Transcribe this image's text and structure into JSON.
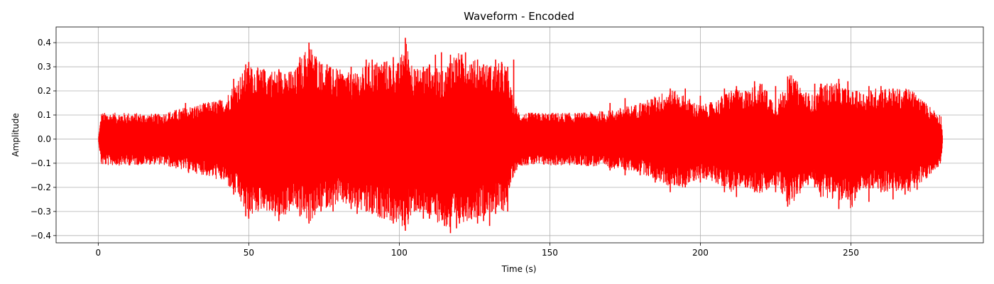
{
  "chart_data": {
    "type": "line",
    "title": "Waveform - Encoded",
    "xlabel": "Time (s)",
    "ylabel": "Amplitude",
    "xlim": [
      -14,
      294
    ],
    "ylim": [
      -0.43,
      0.465
    ],
    "xticks": [
      0,
      50,
      100,
      150,
      200,
      250
    ],
    "xtick_labels": [
      "0",
      "50",
      "100",
      "150",
      "200",
      "250"
    ],
    "yticks": [
      -0.4,
      -0.3,
      -0.2,
      -0.1,
      0.0,
      0.1,
      0.2,
      0.3,
      0.4
    ],
    "ytick_labels": [
      "−0.4",
      "−0.3",
      "−0.2",
      "−0.1",
      "0.0",
      "0.1",
      "0.2",
      "0.3",
      "0.4"
    ],
    "grid": true,
    "line_color": "#ff0000",
    "duration_s": 280.5,
    "series": [
      {
        "envelope_upper": {
          "x": [
            0,
            1,
            10,
            20,
            28,
            35,
            42,
            46,
            50,
            55,
            60,
            65,
            70,
            75,
            80,
            85,
            90,
            95,
            100,
            102,
            105,
            110,
            115,
            117,
            120,
            125,
            130,
            135,
            138,
            140,
            150,
            160,
            170,
            180,
            190,
            195,
            200,
            205,
            210,
            215,
            220,
            225,
            230,
            235,
            238,
            240,
            245,
            250,
            255,
            260,
            265,
            270,
            275,
            280,
            280.5
          ],
          "y": [
            0.0,
            0.11,
            0.11,
            0.105,
            0.13,
            0.15,
            0.17,
            0.25,
            0.31,
            0.29,
            0.29,
            0.28,
            0.4,
            0.31,
            0.29,
            0.27,
            0.32,
            0.33,
            0.32,
            0.42,
            0.29,
            0.31,
            0.28,
            0.35,
            0.36,
            0.33,
            0.31,
            0.32,
            0.16,
            0.11,
            0.11,
            0.11,
            0.12,
            0.15,
            0.21,
            0.18,
            0.14,
            0.16,
            0.21,
            0.2,
            0.24,
            0.15,
            0.27,
            0.2,
            0.18,
            0.23,
            0.24,
            0.2,
            0.2,
            0.22,
            0.21,
            0.21,
            0.15,
            0.1,
            0.0
          ]
        },
        "envelope_lower": {
          "x": [
            0,
            1,
            10,
            20,
            28,
            35,
            42,
            46,
            50,
            55,
            60,
            65,
            70,
            75,
            80,
            85,
            90,
            95,
            100,
            102,
            105,
            110,
            115,
            117,
            120,
            125,
            130,
            135,
            138,
            140,
            150,
            160,
            170,
            180,
            190,
            195,
            200,
            205,
            210,
            215,
            220,
            225,
            230,
            235,
            238,
            240,
            245,
            250,
            255,
            260,
            265,
            270,
            275,
            280,
            280.5
          ],
          "y": [
            0.0,
            -0.11,
            -0.11,
            -0.105,
            -0.13,
            -0.15,
            -0.18,
            -0.24,
            -0.33,
            -0.29,
            -0.34,
            -0.29,
            -0.35,
            -0.29,
            -0.27,
            -0.29,
            -0.32,
            -0.33,
            -0.36,
            -0.38,
            -0.3,
            -0.33,
            -0.36,
            -0.39,
            -0.35,
            -0.33,
            -0.31,
            -0.3,
            -0.15,
            -0.11,
            -0.11,
            -0.11,
            -0.12,
            -0.14,
            -0.2,
            -0.2,
            -0.16,
            -0.18,
            -0.22,
            -0.2,
            -0.23,
            -0.2,
            -0.28,
            -0.2,
            -0.18,
            -0.24,
            -0.25,
            -0.29,
            -0.21,
            -0.22,
            -0.22,
            -0.22,
            -0.17,
            -0.1,
            0.0
          ]
        },
        "peaks_upper": {
          "x": [
            29,
            45,
            49,
            50,
            51,
            55,
            57,
            60,
            62,
            64,
            67,
            70,
            72,
            74,
            76,
            78,
            81,
            84,
            86,
            89,
            91,
            93,
            95,
            98,
            102,
            103,
            105,
            108,
            110,
            112,
            114,
            117,
            119,
            120,
            122,
            124,
            126,
            128,
            130,
            132,
            134,
            136,
            138,
            170,
            175,
            180,
            185,
            190,
            195,
            200,
            208,
            212,
            215,
            218,
            222,
            225,
            229,
            232,
            238,
            240,
            243,
            246,
            249,
            252,
            256,
            260,
            264,
            268,
            272
          ],
          "y": [
            0.15,
            0.25,
            0.31,
            0.32,
            0.29,
            0.29,
            0.26,
            0.29,
            0.27,
            0.28,
            0.34,
            0.4,
            0.33,
            0.31,
            0.31,
            0.29,
            0.27,
            0.3,
            0.27,
            0.33,
            0.33,
            0.3,
            0.32,
            0.34,
            0.42,
            0.33,
            0.29,
            0.3,
            0.31,
            0.35,
            0.36,
            0.35,
            0.33,
            0.33,
            0.36,
            0.31,
            0.33,
            0.31,
            0.3,
            0.33,
            0.32,
            0.3,
            0.33,
            0.15,
            0.17,
            0.15,
            0.17,
            0.21,
            0.21,
            0.18,
            0.21,
            0.22,
            0.2,
            0.24,
            0.2,
            0.22,
            0.26,
            0.2,
            0.23,
            0.23,
            0.22,
            0.25,
            0.24,
            0.2,
            0.22,
            0.22,
            0.21,
            0.2,
            0.16
          ]
        },
        "peaks_lower": {
          "x": [
            30,
            45,
            49,
            50,
            51,
            55,
            57,
            60,
            62,
            64,
            67,
            70,
            72,
            74,
            76,
            78,
            81,
            84,
            86,
            89,
            91,
            93,
            95,
            98,
            102,
            103,
            105,
            108,
            110,
            112,
            115,
            117,
            119,
            120,
            122,
            124,
            126,
            128,
            130,
            132,
            134,
            136,
            170,
            175,
            180,
            185,
            190,
            195,
            200,
            208,
            212,
            215,
            218,
            222,
            225,
            229,
            232,
            238,
            240,
            243,
            246,
            249,
            252,
            256,
            260,
            264,
            268,
            272
          ],
          "y": [
            -0.14,
            -0.23,
            -0.32,
            -0.33,
            -0.29,
            -0.28,
            -0.29,
            -0.34,
            -0.29,
            -0.27,
            -0.32,
            -0.35,
            -0.3,
            -0.3,
            -0.28,
            -0.3,
            -0.25,
            -0.29,
            -0.31,
            -0.3,
            -0.31,
            -0.29,
            -0.33,
            -0.35,
            -0.38,
            -0.33,
            -0.3,
            -0.33,
            -0.33,
            -0.31,
            -0.36,
            -0.39,
            -0.37,
            -0.35,
            -0.32,
            -0.33,
            -0.35,
            -0.34,
            -0.36,
            -0.31,
            -0.29,
            -0.3,
            -0.13,
            -0.15,
            -0.15,
            -0.18,
            -0.22,
            -0.2,
            -0.18,
            -0.22,
            -0.24,
            -0.2,
            -0.22,
            -0.21,
            -0.22,
            -0.28,
            -0.2,
            -0.2,
            -0.24,
            -0.22,
            -0.29,
            -0.25,
            -0.22,
            -0.26,
            -0.22,
            -0.25,
            -0.23,
            -0.21
          ]
        }
      }
    ]
  }
}
